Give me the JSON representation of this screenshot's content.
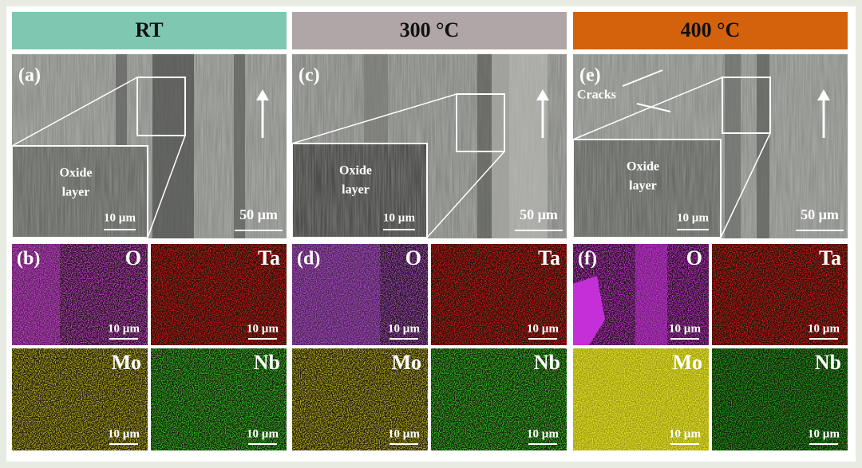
{
  "columns": [
    {
      "header": "RT",
      "color": "#80c7b1",
      "sem": {
        "label": "(a)",
        "inset_lines": [
          "Oxide",
          "layer"
        ],
        "inset_scale": "10 µm",
        "scale": "50 µm"
      },
      "maps": {
        "label": "(b)",
        "panels": [
          {
            "element": "O",
            "scale": "10 µm",
            "color": "#c43fd0"
          },
          {
            "element": "Ta",
            "scale": "10 µm",
            "color": "#d01818"
          },
          {
            "element": "Mo",
            "scale": "10 µm",
            "color": "#b8b020"
          },
          {
            "element": "Nb",
            "scale": "10 µm",
            "color": "#2ec024"
          }
        ]
      }
    },
    {
      "header": "300 °C",
      "color": "#b0a5a7",
      "sem": {
        "label": "(c)",
        "inset_lines": [
          "Oxide",
          "layer"
        ],
        "inset_scale": "10 µm",
        "scale": "50 µm"
      },
      "maps": {
        "label": "(d)",
        "panels": [
          {
            "element": "O",
            "scale": "10 µm",
            "color": "#a648c8"
          },
          {
            "element": "Ta",
            "scale": "10 µm",
            "color": "#d01818"
          },
          {
            "element": "Mo",
            "scale": "10 µm",
            "color": "#b8b020"
          },
          {
            "element": "Nb",
            "scale": "10 µm",
            "color": "#2ec024"
          }
        ]
      }
    },
    {
      "header": "400 °C",
      "color": "#d4620d",
      "sem": {
        "label": "(e)",
        "annotation": "Cracks",
        "inset_lines": [
          "Oxide",
          "layer"
        ],
        "inset_scale": "10 µm",
        "scale": "50 µm"
      },
      "maps": {
        "label": "(f)",
        "panels": [
          {
            "element": "O",
            "scale": "10 µm",
            "color": "#c42fd8"
          },
          {
            "element": "Ta",
            "scale": "10 µm",
            "color": "#d01818"
          },
          {
            "element": "Mo",
            "scale": "10 µm",
            "color": "#e4e020"
          },
          {
            "element": "Nb",
            "scale": "10 µm",
            "color": "#1fa41c"
          }
        ]
      }
    }
  ]
}
